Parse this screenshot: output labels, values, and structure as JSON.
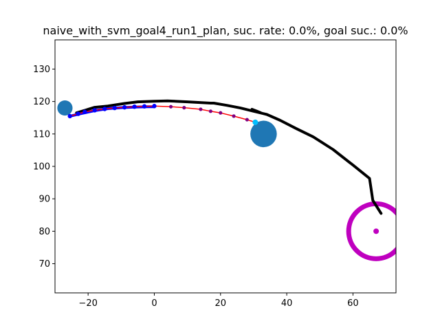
{
  "chart_data": {
    "type": "scatter",
    "title": "naive_with_svm_goal4_run1_plan, suc. rate: 0.0%, goal suc.: 0.0%",
    "xlabel": "",
    "ylabel": "",
    "xlim": [
      -30,
      73
    ],
    "ylim": [
      61,
      139
    ],
    "xticks": [
      -20,
      0,
      20,
      40,
      60
    ],
    "yticks": [
      70,
      80,
      90,
      100,
      110,
      120,
      130
    ],
    "xtick_labels": [
      "−20",
      "0",
      "20",
      "40",
      "60"
    ],
    "ytick_labels": [
      "70",
      "80",
      "90",
      "100",
      "110",
      "120",
      "130"
    ],
    "grid": false,
    "colors": {
      "actual_path": "#000000",
      "plan_line": "#ff0000",
      "plan_points": "#0000ff",
      "plan_markers": "#800080",
      "obstacles": "#1f77b4",
      "goal": "#bf00bf",
      "start_marker": "#00bfff"
    },
    "series": [
      {
        "role": "actual_path",
        "x": [
          -23.5,
          -18,
          -14,
          -9,
          -5,
          0,
          4,
          10,
          17,
          18,
          22,
          26,
          30,
          34,
          38,
          43,
          48,
          54,
          60,
          65,
          66,
          68.5
        ],
        "y": [
          116.5,
          118.2,
          118.6,
          119.4,
          119.9,
          120.1,
          120.2,
          119.9,
          119.5,
          119.5,
          118.8,
          118,
          117,
          116,
          114.2,
          111.6,
          109.1,
          105.2,
          100.4,
          96.3,
          89.5,
          85.5
        ]
      },
      {
        "role": "actual_path_dip",
        "x": [
          29.5,
          31,
          32
        ],
        "y": [
          117.6,
          117,
          116.6
        ]
      },
      {
        "role": "plan_line",
        "x": [
          -25.5,
          -23,
          -21,
          -18,
          -15,
          -12,
          -9,
          -6,
          -3,
          0,
          5,
          9,
          14,
          17,
          20,
          24,
          28,
          30.5
        ],
        "y": [
          115.5,
          116.2,
          116.8,
          117.3,
          117.7,
          118.0,
          118.2,
          118.4,
          118.5,
          118.6,
          118.4,
          118.1,
          117.6,
          117.0,
          116.5,
          115.5,
          114.4,
          113.6
        ]
      },
      {
        "role": "plan_blue_band",
        "x": [
          -25,
          -22,
          -18,
          -14,
          -10,
          -6,
          -2,
          0
        ],
        "y": [
          115.6,
          116.3,
          117.2,
          117.8,
          118.1,
          118.3,
          118.4,
          118.4
        ]
      }
    ],
    "obstacles": [
      {
        "x": -27,
        "y": 118,
        "r": 2.3
      },
      {
        "x": 33,
        "y": 110,
        "r": 4.0
      }
    ],
    "goal": {
      "x": 67,
      "y": 80,
      "r": 8.3
    },
    "goal_center": {
      "x": 67,
      "y": 80
    }
  }
}
